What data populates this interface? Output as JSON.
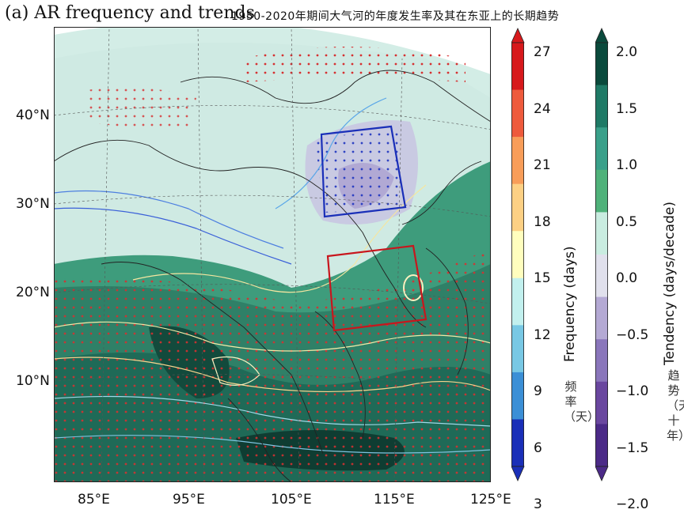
{
  "title": "(a) AR frequency and trends",
  "subtitle": "1950-2020年期间大气河的年度发生率及其在东亚上的长期趋势",
  "map": {
    "lat_ticks": [
      "40°N",
      "30°N",
      "20°N",
      "10°N"
    ],
    "lon_ticks": [
      "85°E",
      "95°E",
      "105°E",
      "115°E",
      "125°E"
    ],
    "boxes": [
      {
        "name": "blue-box",
        "color": "#1a2fb8"
      },
      {
        "name": "red-box",
        "color": "#c8161d"
      }
    ]
  },
  "frequency_colorbar": {
    "label": "Frequency (days)",
    "label_cn": "频率（天）",
    "ticks": [
      "27",
      "24",
      "21",
      "18",
      "15",
      "12",
      "9",
      "6",
      "3"
    ],
    "colors": [
      "#d7191c",
      "#ee5a3c",
      "#f89d59",
      "#fdd084",
      "#fffebe",
      "#c2f0ee",
      "#78c8e4",
      "#3b8fd6",
      "#1a2fb8"
    ]
  },
  "tendency_colorbar": {
    "label": "Tendency (days/decade)",
    "label_cn": "趋势（天/十年）",
    "ticks": [
      "2.0",
      "1.5",
      "1.0",
      "0.5",
      "0.0",
      "−0.5",
      "−1.0",
      "−1.5",
      "−2.0"
    ],
    "colors": [
      "#0a4a3c",
      "#1f7a66",
      "#3aa08a",
      "#4fb27a",
      "#c9ece0",
      "#e0e0ec",
      "#b4a9d4",
      "#8a76bb",
      "#6a479f",
      "#4b2a87"
    ]
  }
}
